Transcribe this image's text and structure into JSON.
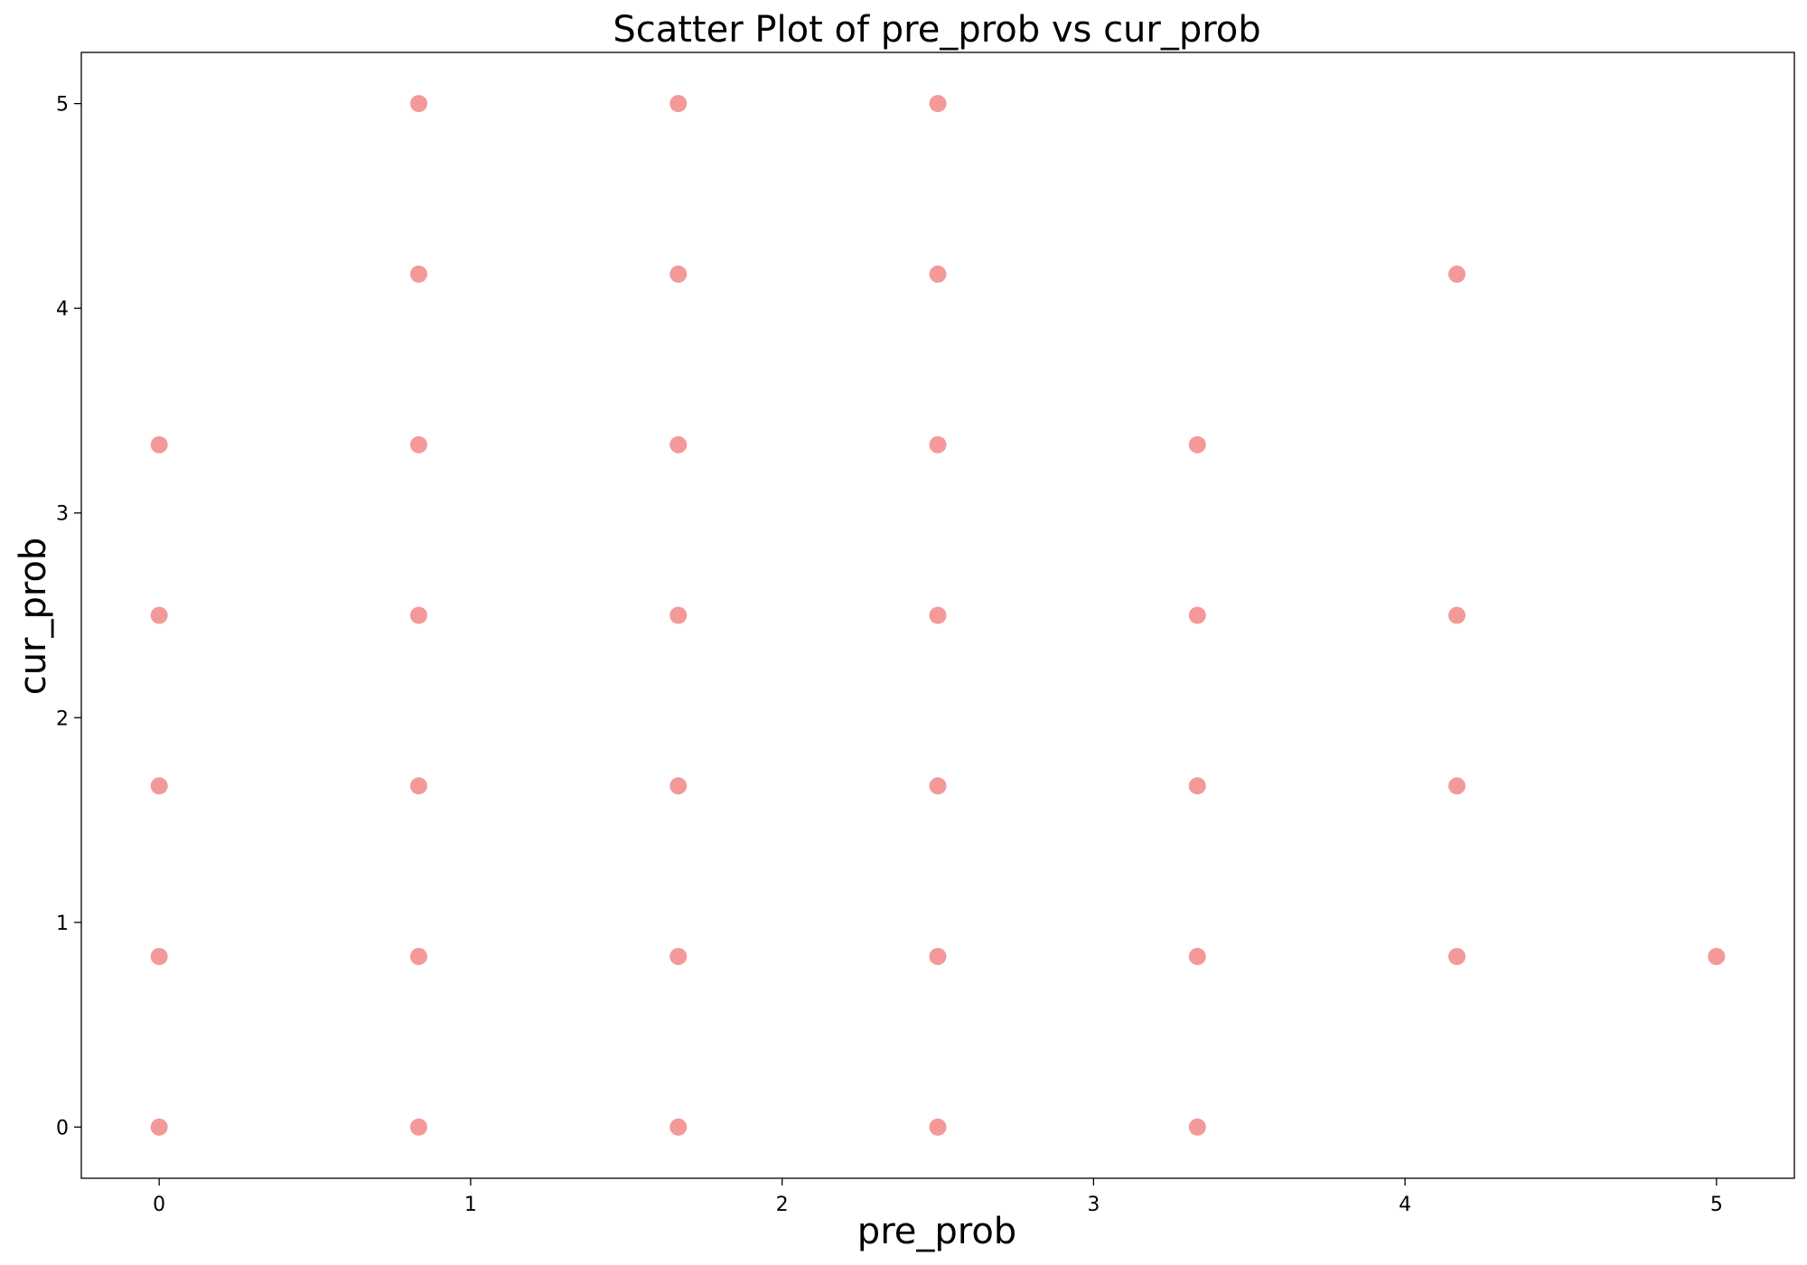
{
  "chart_data": {
    "type": "scatter",
    "title": "Scatter Plot of pre_prob vs cur_prob",
    "xlabel": "pre_prob",
    "ylabel": "cur_prob",
    "xlim": [
      -0.25,
      5.25
    ],
    "ylim": [
      -0.25,
      5.25
    ],
    "x_ticks": [
      0,
      1,
      2,
      3,
      4,
      5
    ],
    "y_ticks": [
      0,
      1,
      2,
      3,
      4,
      5
    ],
    "grid": false,
    "point_color": "#f08080",
    "point_opacity": 0.8,
    "points": [
      {
        "x": 0.8333,
        "y": 5.0
      },
      {
        "x": 1.6667,
        "y": 5.0
      },
      {
        "x": 2.5,
        "y": 5.0
      },
      {
        "x": 0.8333,
        "y": 4.1667
      },
      {
        "x": 1.6667,
        "y": 4.1667
      },
      {
        "x": 2.5,
        "y": 4.1667
      },
      {
        "x": 4.1667,
        "y": 4.1667
      },
      {
        "x": 0.0,
        "y": 3.3333
      },
      {
        "x": 0.8333,
        "y": 3.3333
      },
      {
        "x": 1.6667,
        "y": 3.3333
      },
      {
        "x": 2.5,
        "y": 3.3333
      },
      {
        "x": 3.3333,
        "y": 3.3333
      },
      {
        "x": 0.0,
        "y": 2.5
      },
      {
        "x": 0.8333,
        "y": 2.5
      },
      {
        "x": 1.6667,
        "y": 2.5
      },
      {
        "x": 2.5,
        "y": 2.5
      },
      {
        "x": 3.3333,
        "y": 2.5
      },
      {
        "x": 4.1667,
        "y": 2.5
      },
      {
        "x": 0.0,
        "y": 1.6667
      },
      {
        "x": 0.8333,
        "y": 1.6667
      },
      {
        "x": 1.6667,
        "y": 1.6667
      },
      {
        "x": 2.5,
        "y": 1.6667
      },
      {
        "x": 3.3333,
        "y": 1.6667
      },
      {
        "x": 4.1667,
        "y": 1.6667
      },
      {
        "x": 0.0,
        "y": 0.8333
      },
      {
        "x": 0.8333,
        "y": 0.8333
      },
      {
        "x": 1.6667,
        "y": 0.8333
      },
      {
        "x": 2.5,
        "y": 0.8333
      },
      {
        "x": 3.3333,
        "y": 0.8333
      },
      {
        "x": 4.1667,
        "y": 0.8333
      },
      {
        "x": 5.0,
        "y": 0.8333
      },
      {
        "x": 0.0,
        "y": 0.0
      },
      {
        "x": 0.8333,
        "y": 0.0
      },
      {
        "x": 1.6667,
        "y": 0.0
      },
      {
        "x": 2.5,
        "y": 0.0
      },
      {
        "x": 3.3333,
        "y": 0.0
      }
    ]
  }
}
